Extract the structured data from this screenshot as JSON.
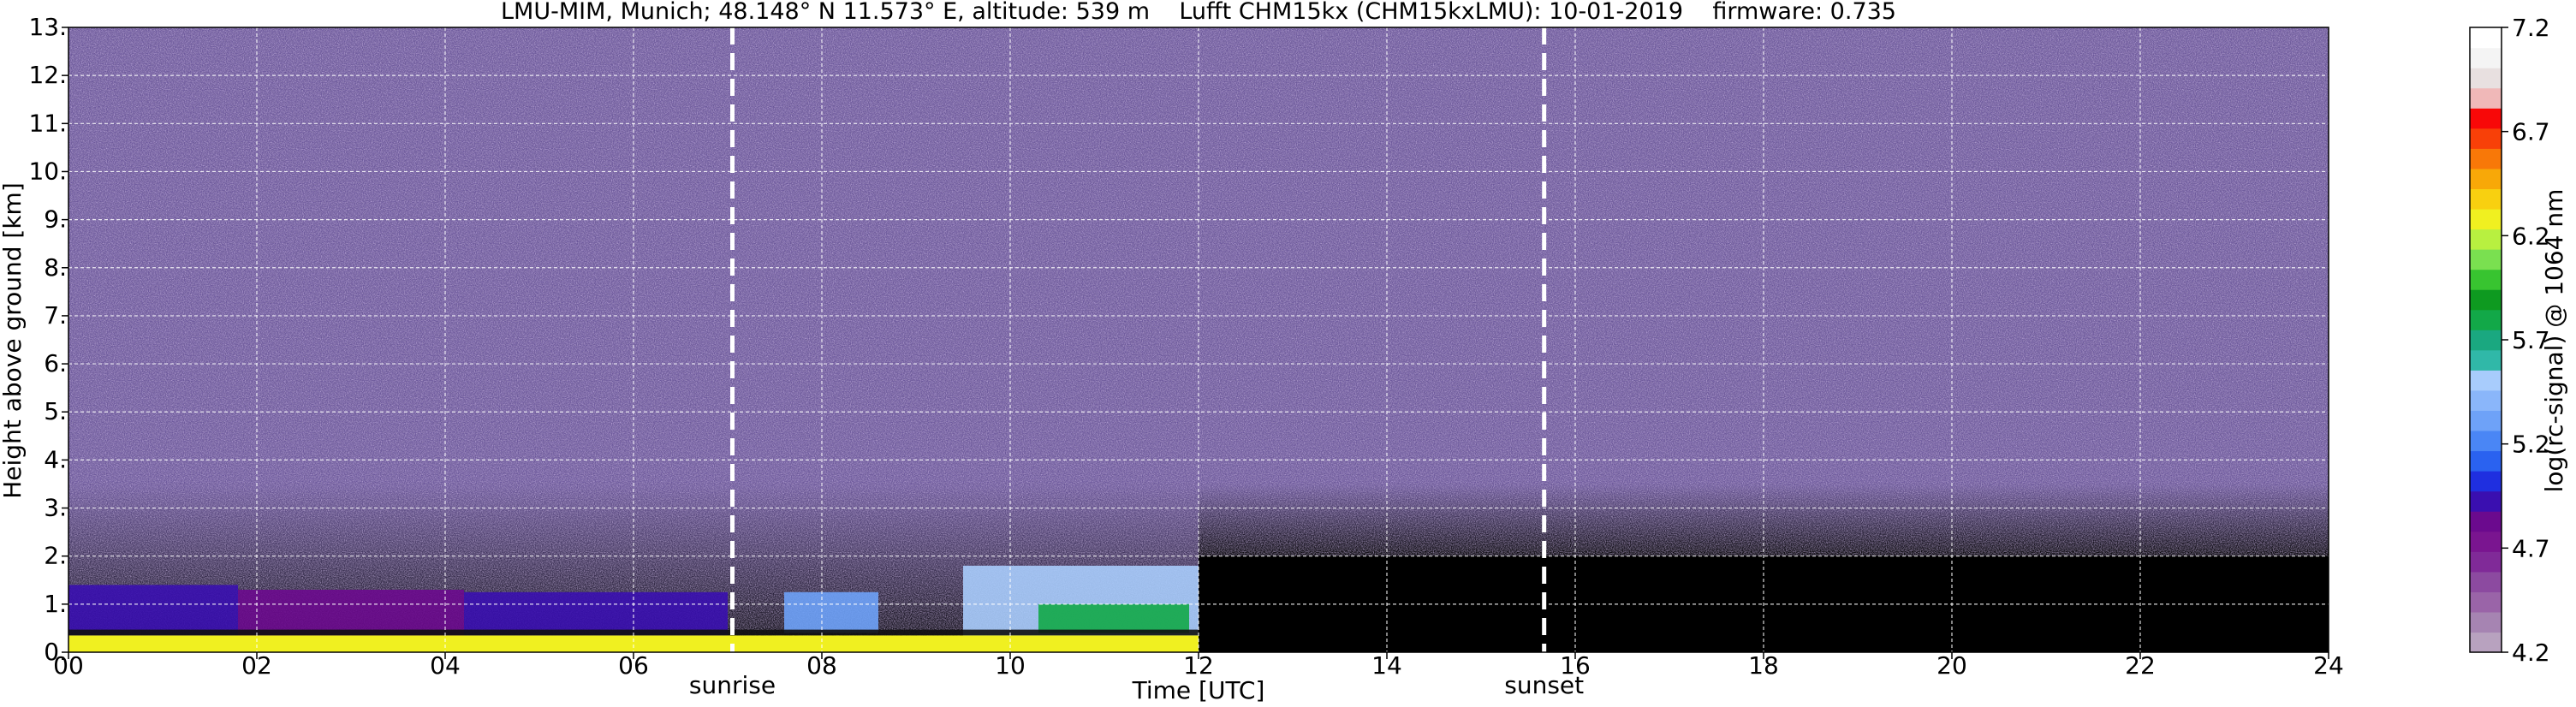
{
  "chart_data": {
    "type": "heatmap",
    "title": "LMU-MIM, Munich; 48.148° N 11.573° E, altitude: 539 m    Lufft CHM15kx (CHM15kxLMU): 10-01-2019    firmware: 0.735",
    "xlabel": "Time [UTC]",
    "ylabel": "Height above ground [km]",
    "xlim": [
      0,
      24
    ],
    "ylim": [
      0,
      13
    ],
    "x_ticks": [
      "00",
      "02",
      "04",
      "06",
      "08",
      "10",
      "12",
      "14",
      "16",
      "18",
      "20",
      "22",
      "24"
    ],
    "x_tick_values": [
      0,
      2,
      4,
      6,
      8,
      10,
      12,
      14,
      16,
      18,
      20,
      22,
      24
    ],
    "y_ticks": [
      "0.",
      "1.",
      "2.",
      "3.",
      "4.",
      "5.",
      "6.",
      "7.",
      "8.",
      "9.",
      "10.",
      "11.",
      "12.",
      "13."
    ],
    "y_tick_values": [
      0,
      1,
      2,
      3,
      4,
      5,
      6,
      7,
      8,
      9,
      10,
      11,
      12,
      13
    ],
    "grid": true,
    "colorbar": {
      "label": "log(rc-signal) @ 1064 nm",
      "min": 4.2,
      "max": 7.2,
      "ticks": [
        "4.2",
        "4.7",
        "5.2",
        "5.7",
        "6.2",
        "6.7",
        "7.2"
      ],
      "tick_values": [
        4.2,
        4.7,
        5.2,
        5.7,
        6.2,
        6.7,
        7.2
      ],
      "colors": [
        "#b8a2bf",
        "#a684b2",
        "#9a64a8",
        "#8c4aa0",
        "#802a98",
        "#7a1590",
        "#6b0a8e",
        "#3a0fb0",
        "#1f2fe0",
        "#2a62f0",
        "#4a86f5",
        "#6ea2f8",
        "#8ab6fa",
        "#a8ccfc",
        "#30b8a8",
        "#1aa880",
        "#12a848",
        "#0e9a20",
        "#38c430",
        "#7ae050",
        "#b8f040",
        "#f0f020",
        "#f8d010",
        "#f8a808",
        "#f87808",
        "#f84008",
        "#f80808",
        "#f0b8b8",
        "#e8e0e0",
        "#f4f4f4",
        "#ffffff"
      ]
    },
    "markers": [
      {
        "label": "sunrise",
        "x": 7.05
      },
      {
        "label": "sunset",
        "x": 15.67
      }
    ],
    "data_end_time": 12.0,
    "background_noise": {
      "color": "#6a569a",
      "from_height_km": 3.5,
      "to_height_km": 13
    },
    "aerosol_layers": [
      {
        "from_time": 0.0,
        "to_time": 1.8,
        "bottom_km": 0.3,
        "top_km": 1.4,
        "value": 4.9
      },
      {
        "from_time": 1.8,
        "to_time": 4.2,
        "bottom_km": 0.3,
        "top_km": 1.3,
        "value": 4.8
      },
      {
        "from_time": 4.2,
        "to_time": 7.0,
        "bottom_km": 0.3,
        "top_km": 1.25,
        "value": 4.9
      },
      {
        "from_time": 7.6,
        "to_time": 8.6,
        "bottom_km": 0.4,
        "top_km": 1.25,
        "value": 5.3
      },
      {
        "from_time": 9.5,
        "to_time": 12.0,
        "bottom_km": 0.3,
        "top_km": 1.8,
        "value": 5.5
      },
      {
        "from_time": 10.3,
        "to_time": 11.9,
        "bottom_km": 0.4,
        "top_km": 1.0,
        "value": 5.8
      }
    ],
    "ground_layer": {
      "from_time": 0.0,
      "to_time": 12.0,
      "top_km": 0.35,
      "value": 6.3
    }
  }
}
